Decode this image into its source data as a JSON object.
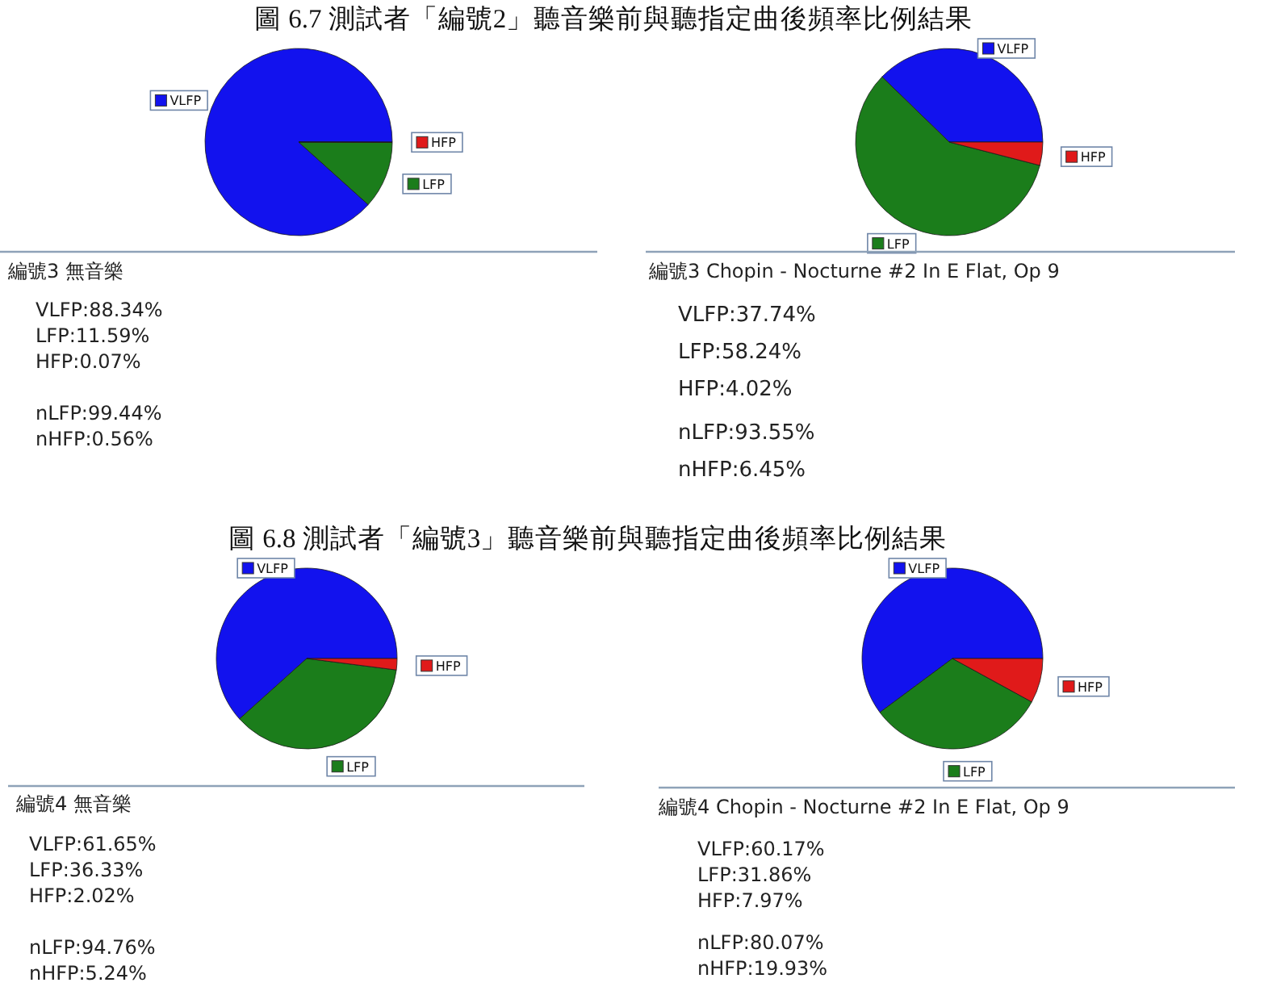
{
  "chart_data": [
    {
      "type": "other",
      "title": "圖 6.7 測試者「編號2」聽音樂前與聽指定曲後頻率比例結果"
    },
    {
      "type": "pie",
      "title": "編號3 無音樂",
      "categories": [
        "VLFP",
        "LFP",
        "HFP"
      ],
      "values": [
        88.34,
        11.59,
        0.07
      ],
      "colors": [
        "#1212ee",
        "#1b7d1b",
        "#e01a1a"
      ],
      "legend": "right",
      "annotations": [
        "VLFP:88.34%",
        "LFP:11.59%",
        "HFP:0.07%",
        "nLFP:99.44%",
        "nHFP:0.56%"
      ]
    },
    {
      "type": "pie",
      "title": "編號3 Chopin - Nocturne #2 In E Flat, Op 9",
      "categories": [
        "VLFP",
        "LFP",
        "HFP"
      ],
      "values": [
        37.74,
        58.24,
        4.02
      ],
      "colors": [
        "#1212ee",
        "#1b7d1b",
        "#e01a1a"
      ],
      "legend": "right",
      "annotations": [
        "VLFP:37.74%",
        "LFP:58.24%",
        "HFP:4.02%",
        "nLFP:93.55%",
        "nHFP:6.45%"
      ]
    },
    {
      "type": "other",
      "title": "圖 6.8 測試者「編號3」聽音樂前與聽指定曲後頻率比例結果"
    },
    {
      "type": "pie",
      "title": "編號4 無音樂",
      "categories": [
        "VLFP",
        "LFP",
        "HFP"
      ],
      "values": [
        61.65,
        36.33,
        2.02
      ],
      "colors": [
        "#1212ee",
        "#1b7d1b",
        "#e01a1a"
      ],
      "legend": "right",
      "annotations": [
        "VLFP:61.65%",
        "LFP:36.33%",
        "HFP:2.02%",
        "nLFP:94.76%",
        "nHFP:5.24%"
      ]
    },
    {
      "type": "pie",
      "title": "編號4 Chopin - Nocturne #2 In E Flat, Op 9",
      "categories": [
        "VLFP",
        "LFP",
        "HFP"
      ],
      "values": [
        60.17,
        31.86,
        7.97
      ],
      "colors": [
        "#1212ee",
        "#1b7d1b",
        "#e01a1a"
      ],
      "legend": "right",
      "annotations": [
        "VLFP:60.17%",
        "LFP:31.86%",
        "HFP:7.97%",
        "nLFP:80.07%",
        "nHFP:19.93%"
      ]
    }
  ]
}
